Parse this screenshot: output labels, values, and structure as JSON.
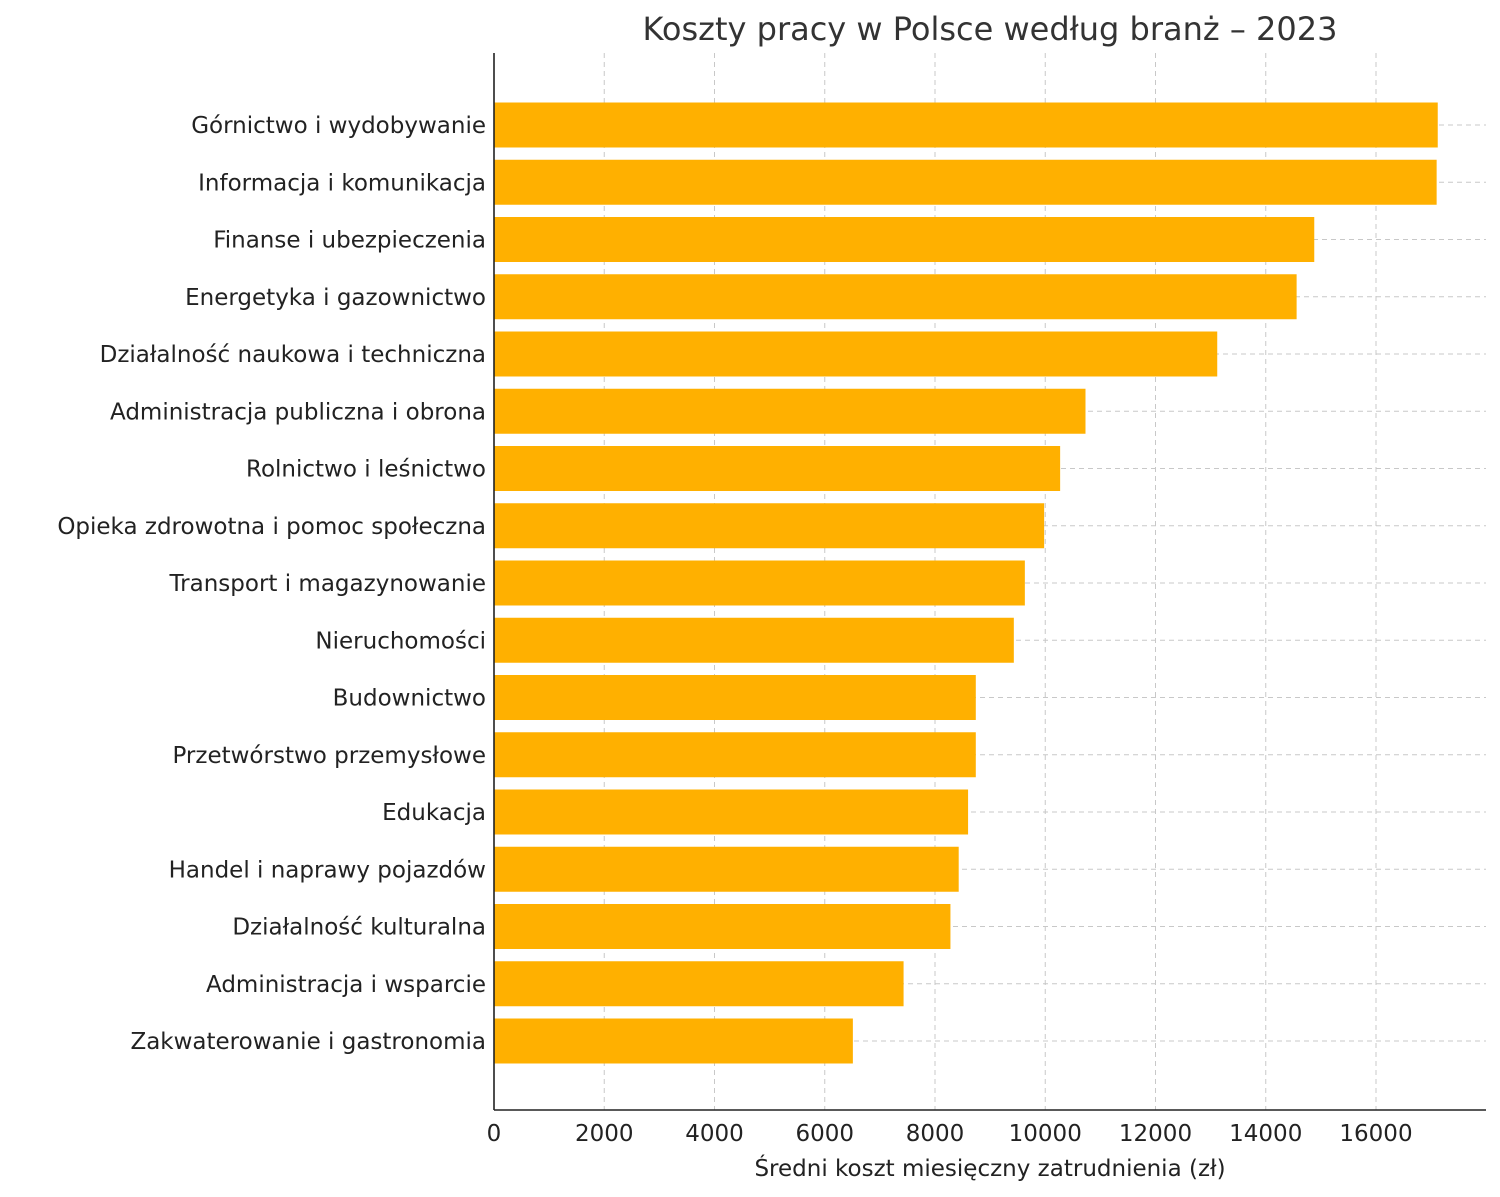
{
  "chart_data": {
    "type": "bar",
    "orientation": "horizontal",
    "title": "Koszty pracy w Polsce według branż – 2023",
    "xlabel": "Średni koszt miesięczny zatrudnienia (zł)",
    "ylabel": "",
    "xlim": [
      0,
      18000
    ],
    "xticks": [
      0,
      2000,
      4000,
      6000,
      8000,
      10000,
      12000,
      14000,
      16000
    ],
    "grid": true,
    "bar_color": "#FFB000",
    "categories": [
      "Górnictwo i wydobywanie",
      "Informacja i komunikacja",
      "Finanse i ubezpieczenia",
      "Energetyka i gazownictwo",
      "Działalność naukowa i techniczna",
      "Administracja publiczna i obrona",
      "Rolnictwo i leśnictwo",
      "Opieka zdrowotna i pomoc społeczna",
      "Transport i magazynowanie",
      "Nieruchomości",
      "Budownictwo",
      "Przetwórstwo przemysłowe",
      "Edukacja",
      "Handel i naprawy pojazdów",
      "Działalność kulturalna",
      "Administracja i wsparcie",
      "Zakwaterowanie i gastronomia"
    ],
    "values": [
      17120,
      17100,
      14880,
      14560,
      13120,
      10730,
      10270,
      9980,
      9630,
      9430,
      8740,
      8740,
      8600,
      8430,
      8280,
      7430,
      6510
    ]
  }
}
